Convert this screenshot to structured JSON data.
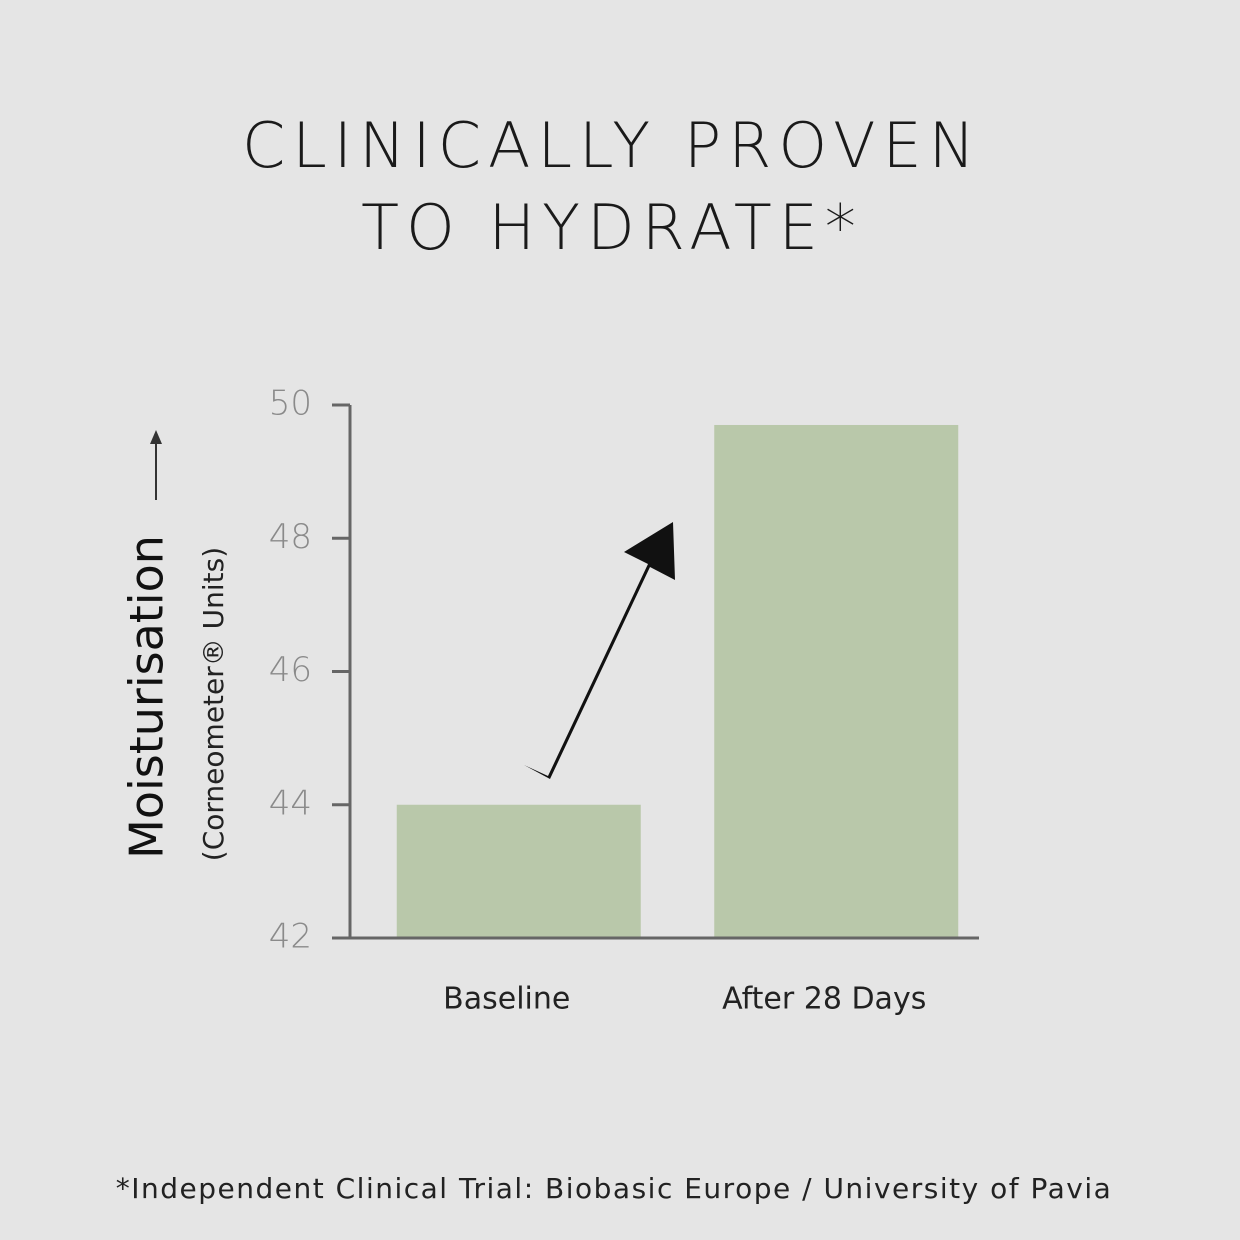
{
  "chart_data": {
    "type": "bar",
    "title": [
      "CLINICALLY PROVEN",
      "TO HYDRATE*"
    ],
    "y_label": "Moisturisation",
    "y_label_units": "(Corneometer® Units)",
    "categories": [
      "Baseline",
      "After 28 Days"
    ],
    "values": [
      44,
      49.7
    ],
    "color": "#b9c8aa",
    "ylim": [
      42,
      50
    ],
    "yticks": [
      42,
      44,
      46,
      48,
      50
    ],
    "grid": false,
    "footnote": "*Independent Clinical Trial: Biobasic Europe / University of Pavia"
  }
}
